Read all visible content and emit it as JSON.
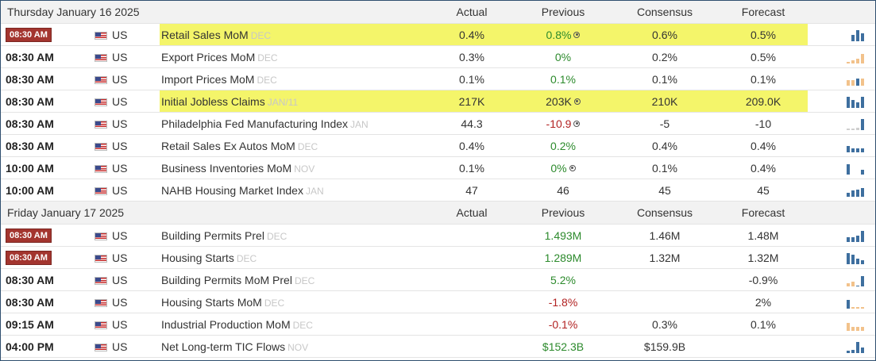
{
  "columns": {
    "actual": "Actual",
    "previous": "Previous",
    "consensus": "Consensus",
    "forecast": "Forecast"
  },
  "days": [
    {
      "date": "Thursday January 16 2025",
      "events": [
        {
          "time": "08:30 AM",
          "badge": true,
          "country": "US",
          "name": "Retail Sales MoM",
          "period": "DEC",
          "actual": "0.4%",
          "previous": "0.8%",
          "prev_color": "green",
          "revised": true,
          "consensus": "0.6%",
          "forecast": "0.5%",
          "highlight": true,
          "spark": [
            {
              "h": 0
            },
            {
              "h": 0.5
            },
            {
              "h": 0.9
            },
            {
              "h": 0.6
            }
          ]
        },
        {
          "time": "08:30 AM",
          "badge": false,
          "country": "US",
          "name": "Export Prices MoM",
          "period": "DEC",
          "actual": "0.3%",
          "previous": "0%",
          "prev_color": "green",
          "revised": false,
          "consensus": "0.2%",
          "forecast": "0.5%",
          "highlight": false,
          "spark": [
            {
              "h": 0.15,
              "c": "o"
            },
            {
              "h": 0.25,
              "c": "o"
            },
            {
              "h": 0.4,
              "c": "o"
            },
            {
              "h": 0.75,
              "c": "o"
            }
          ]
        },
        {
          "time": "08:30 AM",
          "badge": false,
          "country": "US",
          "name": "Import Prices MoM",
          "period": "DEC",
          "actual": "0.1%",
          "previous": "0.1%",
          "prev_color": "green",
          "revised": false,
          "consensus": "0.1%",
          "forecast": "0.1%",
          "highlight": false,
          "spark": [
            {
              "h": 0.45,
              "c": "o"
            },
            {
              "h": 0.45,
              "c": "o"
            },
            {
              "h": 0.55
            },
            {
              "h": 0.55,
              "c": "o"
            }
          ]
        },
        {
          "time": "08:30 AM",
          "badge": false,
          "country": "US",
          "name": "Initial Jobless Claims",
          "period": "JAN/11",
          "actual": "217K",
          "previous": "203K",
          "prev_color": "",
          "revised": true,
          "consensus": "210K",
          "forecast": "209.0K",
          "highlight": true,
          "spark": [
            {
              "h": 0.9
            },
            {
              "h": 0.6
            },
            {
              "h": 0.45
            },
            {
              "h": 0.9
            }
          ]
        },
        {
          "time": "08:30 AM",
          "badge": false,
          "country": "US",
          "name": "Philadelphia Fed Manufacturing Index",
          "period": "JAN",
          "actual": "44.3",
          "previous": "-10.9",
          "prev_color": "red",
          "revised": true,
          "consensus": "-5",
          "forecast": "-10",
          "highlight": false,
          "spark": [
            {
              "h": 0.1,
              "c": "g"
            },
            {
              "h": 0.1,
              "c": "g"
            },
            {
              "h": 0.2,
              "c": "g"
            },
            {
              "h": 0.85
            }
          ]
        },
        {
          "time": "08:30 AM",
          "badge": false,
          "country": "US",
          "name": "Retail Sales Ex Autos MoM",
          "period": "DEC",
          "actual": "0.4%",
          "previous": "0.2%",
          "prev_color": "green",
          "revised": false,
          "consensus": "0.4%",
          "forecast": "0.4%",
          "highlight": false,
          "spark": [
            {
              "h": 0.5
            },
            {
              "h": 0.3
            },
            {
              "h": 0.3
            },
            {
              "h": 0.3
            }
          ]
        },
        {
          "time": "10:00 AM",
          "badge": false,
          "country": "US",
          "name": "Business Inventories MoM",
          "period": "NOV",
          "actual": "0.1%",
          "previous": "0%",
          "prev_color": "green",
          "revised": true,
          "consensus": "0.1%",
          "forecast": "0.4%",
          "highlight": false,
          "spark": [
            {
              "h": 0.8
            },
            {
              "h": 0
            },
            {
              "h": 0
            },
            {
              "h": 0.35
            }
          ]
        },
        {
          "time": "10:00 AM",
          "badge": false,
          "country": "US",
          "name": "NAHB Housing Market Index",
          "period": "JAN",
          "actual": "47",
          "previous": "46",
          "prev_color": "",
          "revised": false,
          "consensus": "45",
          "forecast": "45",
          "highlight": false,
          "spark": [
            {
              "h": 0.3
            },
            {
              "h": 0.5
            },
            {
              "h": 0.55
            },
            {
              "h": 0.7
            }
          ]
        }
      ]
    },
    {
      "date": "Friday January 17 2025",
      "events": [
        {
          "time": "08:30 AM",
          "badge": true,
          "country": "US",
          "name": "Building Permits Prel",
          "period": "DEC",
          "actual": "",
          "previous": "1.493M",
          "prev_color": "green",
          "revised": false,
          "consensus": "1.46M",
          "forecast": "1.48M",
          "highlight": false,
          "spark": [
            {
              "h": 0.35
            },
            {
              "h": 0.35
            },
            {
              "h": 0.5
            },
            {
              "h": 0.9
            }
          ]
        },
        {
          "time": "08:30 AM",
          "badge": true,
          "country": "US",
          "name": "Housing Starts",
          "period": "DEC",
          "actual": "",
          "previous": "1.289M",
          "prev_color": "green",
          "revised": false,
          "consensus": "1.32M",
          "forecast": "1.32M",
          "highlight": false,
          "spark": [
            {
              "h": 0.9
            },
            {
              "h": 0.75
            },
            {
              "h": 0.45
            },
            {
              "h": 0.3
            }
          ]
        },
        {
          "time": "08:30 AM",
          "badge": false,
          "country": "US",
          "name": "Building Permits MoM Prel",
          "period": "DEC",
          "actual": "",
          "previous": "5.2%",
          "prev_color": "green",
          "revised": false,
          "consensus": "",
          "forecast": "-0.9%",
          "highlight": false,
          "spark": [
            {
              "h": 0.25,
              "c": "o"
            },
            {
              "h": 0.4,
              "c": "o"
            },
            {
              "h": 0.05
            },
            {
              "h": 0.8
            }
          ]
        },
        {
          "time": "08:30 AM",
          "badge": false,
          "country": "US",
          "name": "Housing Starts MoM",
          "period": "DEC",
          "actual": "",
          "previous": "-1.8%",
          "prev_color": "red",
          "revised": false,
          "consensus": "",
          "forecast": "2%",
          "highlight": false,
          "spark": [
            {
              "h": 0.7
            },
            {
              "h": 0.15,
              "c": "o"
            },
            {
              "h": 0.15,
              "c": "o"
            },
            {
              "h": 0.15,
              "c": "o"
            }
          ]
        },
        {
          "time": "09:15 AM",
          "badge": false,
          "country": "US",
          "name": "Industrial Production MoM",
          "period": "DEC",
          "actual": "",
          "previous": "-0.1%",
          "prev_color": "red",
          "revised": false,
          "consensus": "0.3%",
          "forecast": "0.1%",
          "highlight": false,
          "spark": [
            {
              "h": 0.6,
              "c": "o"
            },
            {
              "h": 0.3,
              "c": "o"
            },
            {
              "h": 0.3,
              "c": "o"
            },
            {
              "h": 0.3,
              "c": "o"
            }
          ]
        },
        {
          "time": "04:00 PM",
          "badge": false,
          "country": "US",
          "name": "Net Long-term TIC Flows",
          "period": "NOV",
          "actual": "",
          "previous": "$152.3B",
          "prev_color": "green",
          "revised": false,
          "consensus": "$159.9B",
          "forecast": "",
          "highlight": false,
          "spark": [
            {
              "h": 0.2
            },
            {
              "h": 0.25
            },
            {
              "h": 0.9
            },
            {
              "h": 0.45
            }
          ]
        }
      ]
    }
  ]
}
